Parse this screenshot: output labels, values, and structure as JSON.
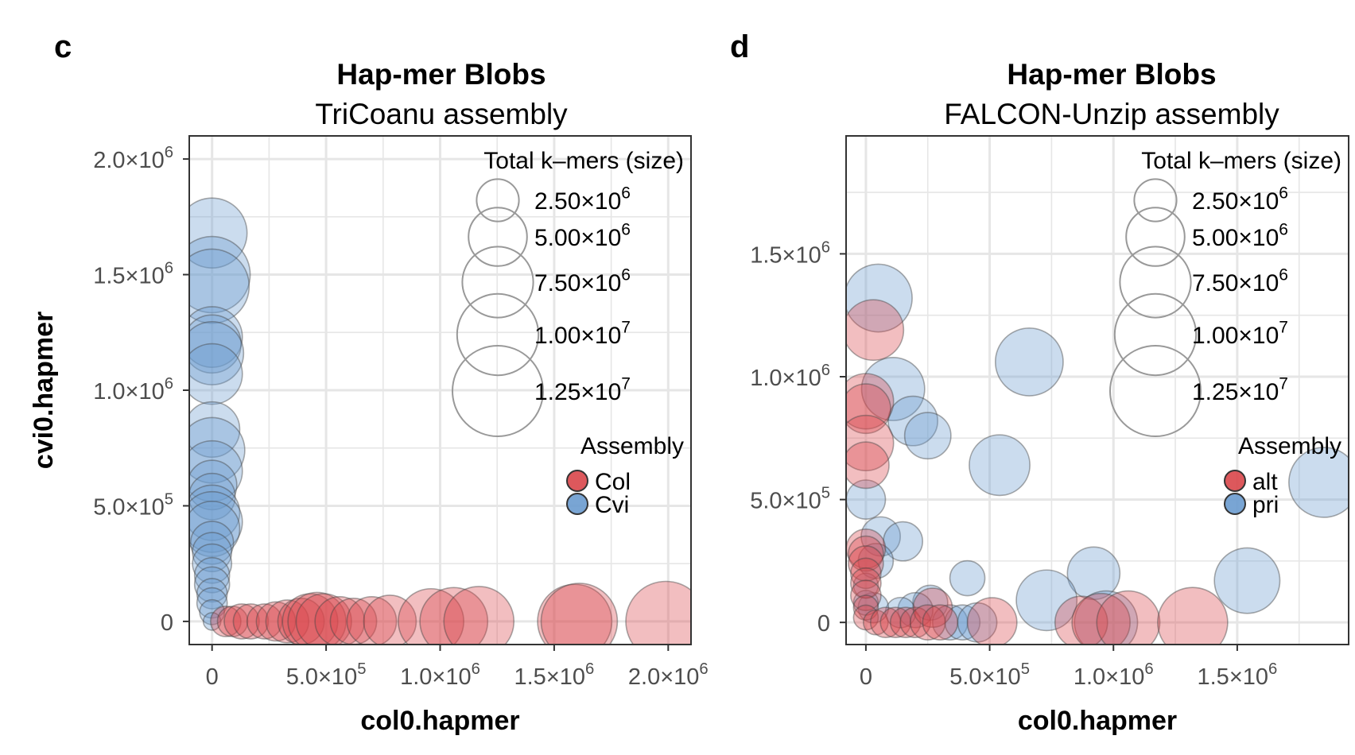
{
  "colors": {
    "red": "#d9464a",
    "blue": "#6a9bcf",
    "grid": "#e6e6e6",
    "panel_border": "#333333",
    "legend_circle": "#999999"
  },
  "panels": [
    {
      "letter": "c"
    },
    {
      "letter": "d"
    }
  ],
  "chart_data": [
    {
      "type": "scatter",
      "title": "Hap-mer Blobs",
      "subtitle": "TriCoanu assembly",
      "xlabel": "col0.hapmer",
      "ylabel": "cvi0.hapmer",
      "xlim": [
        -100000,
        2100000
      ],
      "ylim": [
        -100000,
        2100000
      ],
      "x_ticks": [
        {
          "value": 0,
          "mant": "0",
          "exp": ""
        },
        {
          "value": 500000,
          "mant": "5.0×10",
          "exp": "5"
        },
        {
          "value": 1000000,
          "mant": "1.0×10",
          "exp": "6"
        },
        {
          "value": 1500000,
          "mant": "1.5×10",
          "exp": "6"
        },
        {
          "value": 2000000,
          "mant": "2.0×10",
          "exp": "6"
        }
      ],
      "y_ticks": [
        {
          "value": 0,
          "mant": "0",
          "exp": ""
        },
        {
          "value": 500000,
          "mant": "5.0×10",
          "exp": "5"
        },
        {
          "value": 1000000,
          "mant": "1.0×10",
          "exp": "6"
        },
        {
          "value": 1500000,
          "mant": "1.5×10",
          "exp": "6"
        },
        {
          "value": 2000000,
          "mant": "2.0×10",
          "exp": "6"
        }
      ],
      "grid": true,
      "size_legend": {
        "title": "Total k–mers (size)",
        "position": "top-right",
        "entries": [
          {
            "value": 2500000,
            "mant": "2.50×10",
            "exp": "6"
          },
          {
            "value": 5000000,
            "mant": "5.00×10",
            "exp": "6"
          },
          {
            "value": 7500000,
            "mant": "7.50×10",
            "exp": "6"
          },
          {
            "value": 10000000,
            "mant": "1.00×10",
            "exp": "7"
          },
          {
            "value": 12500000,
            "mant": "1.25×10",
            "exp": "7"
          }
        ]
      },
      "color_legend": {
        "title": "Assembly",
        "position": "right",
        "entries": [
          {
            "label": "Col",
            "color": "#d9464a"
          },
          {
            "label": "Cvi",
            "color": "#6a9bcf"
          }
        ]
      },
      "series": [
        {
          "name": "Cvi",
          "color": "#6a9bcf",
          "points": [
            {
              "x": 0,
              "y": 1680000,
              "size": 8000000
            },
            {
              "x": 0,
              "y": 1500000,
              "size": 9500000
            },
            {
              "x": 0,
              "y": 1450000,
              "size": 9000000
            },
            {
              "x": 0,
              "y": 1230000,
              "size": 6000000
            },
            {
              "x": 0,
              "y": 1200000,
              "size": 5500000
            },
            {
              "x": 0,
              "y": 1160000,
              "size": 6500000
            },
            {
              "x": 0,
              "y": 1070000,
              "size": 6000000
            },
            {
              "x": 0,
              "y": 830000,
              "size": 5000000
            },
            {
              "x": 0,
              "y": 740000,
              "size": 7000000
            },
            {
              "x": 0,
              "y": 650000,
              "size": 6000000
            },
            {
              "x": 0,
              "y": 590000,
              "size": 4000000
            },
            {
              "x": 0,
              "y": 540000,
              "size": 3500000
            },
            {
              "x": 0,
              "y": 470000,
              "size": 5000000
            },
            {
              "x": 0,
              "y": 430000,
              "size": 6000000
            },
            {
              "x": 0,
              "y": 400000,
              "size": 5000000
            },
            {
              "x": 0,
              "y": 340000,
              "size": 3000000
            },
            {
              "x": 0,
              "y": 300000,
              "size": 2500000
            },
            {
              "x": 0,
              "y": 250000,
              "size": 2500000
            },
            {
              "x": 0,
              "y": 200000,
              "size": 2000000
            },
            {
              "x": 0,
              "y": 160000,
              "size": 2000000
            },
            {
              "x": 0,
              "y": 120000,
              "size": 1500000
            },
            {
              "x": 0,
              "y": 80000,
              "size": 1500000
            },
            {
              "x": 0,
              "y": 40000,
              "size": 1000000
            },
            {
              "x": 0,
              "y": 0,
              "size": 500000
            }
          ]
        },
        {
          "name": "Col",
          "color": "#d9464a",
          "points": [
            {
              "x": 60000,
              "y": 0,
              "size": 1500000
            },
            {
              "x": 90000,
              "y": 0,
              "size": 1500000
            },
            {
              "x": 130000,
              "y": 0,
              "size": 2000000
            },
            {
              "x": 170000,
              "y": 0,
              "size": 2000000
            },
            {
              "x": 230000,
              "y": 0,
              "size": 2000000
            },
            {
              "x": 280000,
              "y": 0,
              "size": 2500000
            },
            {
              "x": 330000,
              "y": 0,
              "size": 3000000
            },
            {
              "x": 390000,
              "y": 0,
              "size": 3500000
            },
            {
              "x": 430000,
              "y": 0,
              "size": 5000000
            },
            {
              "x": 460000,
              "y": 0,
              "size": 5500000
            },
            {
              "x": 490000,
              "y": 0,
              "size": 5000000
            },
            {
              "x": 560000,
              "y": 0,
              "size": 4000000
            },
            {
              "x": 620000,
              "y": 0,
              "size": 3500000
            },
            {
              "x": 700000,
              "y": 0,
              "size": 4000000
            },
            {
              "x": 780000,
              "y": 0,
              "size": 4500000
            },
            {
              "x": 960000,
              "y": 0,
              "size": 7000000
            },
            {
              "x": 1060000,
              "y": 0,
              "size": 7500000
            },
            {
              "x": 1170000,
              "y": 0,
              "size": 8000000
            },
            {
              "x": 1590000,
              "y": 0,
              "size": 9000000
            },
            {
              "x": 1610000,
              "y": 0,
              "size": 9500000
            },
            {
              "x": 1990000,
              "y": 0,
              "size": 10500000
            }
          ]
        }
      ]
    },
    {
      "type": "scatter",
      "title": "Hap-mer Blobs",
      "subtitle": "FALCON-Unzip assembly",
      "xlabel": "col0.hapmer",
      "ylabel": "",
      "xlim": [
        -80000,
        1950000
      ],
      "ylim": [
        -90000,
        1980000
      ],
      "x_ticks": [
        {
          "value": 0,
          "mant": "0",
          "exp": ""
        },
        {
          "value": 500000,
          "mant": "5.0×10",
          "exp": "5"
        },
        {
          "value": 1000000,
          "mant": "1.0×10",
          "exp": "6"
        },
        {
          "value": 1500000,
          "mant": "1.5×10",
          "exp": "6"
        }
      ],
      "y_ticks": [
        {
          "value": 0,
          "mant": "0",
          "exp": ""
        },
        {
          "value": 500000,
          "mant": "5.0×10",
          "exp": "5"
        },
        {
          "value": 1000000,
          "mant": "1.0×10",
          "exp": "6"
        },
        {
          "value": 1500000,
          "mant": "1.5×10",
          "exp": "6"
        }
      ],
      "grid": true,
      "size_legend": {
        "title": "Total k–mers (size)",
        "position": "top-right",
        "entries": [
          {
            "value": 2500000,
            "mant": "2.50×10",
            "exp": "6"
          },
          {
            "value": 5000000,
            "mant": "5.00×10",
            "exp": "6"
          },
          {
            "value": 7500000,
            "mant": "7.50×10",
            "exp": "6"
          },
          {
            "value": 10000000,
            "mant": "1.00×10",
            "exp": "7"
          },
          {
            "value": 12500000,
            "mant": "1.25×10",
            "exp": "7"
          }
        ]
      },
      "color_legend": {
        "title": "Assembly",
        "position": "right",
        "entries": [
          {
            "label": "alt",
            "color": "#d9464a"
          },
          {
            "label": "pri",
            "color": "#6a9bcf"
          }
        ]
      },
      "series": [
        {
          "name": "pri",
          "color": "#6a9bcf",
          "points": [
            {
              "x": 50000,
              "y": 1320000,
              "size": 7500000
            },
            {
              "x": 110000,
              "y": 950000,
              "size": 6500000
            },
            {
              "x": 190000,
              "y": 820000,
              "size": 4000000
            },
            {
              "x": 250000,
              "y": 760000,
              "size": 3500000
            },
            {
              "x": 540000,
              "y": 640000,
              "size": 6000000
            },
            {
              "x": 660000,
              "y": 1060000,
              "size": 7500000
            },
            {
              "x": 1850000,
              "y": 570000,
              "size": 8000000
            },
            {
              "x": 0,
              "y": 500000,
              "size": 2500000
            },
            {
              "x": 60000,
              "y": 350000,
              "size": 2500000
            },
            {
              "x": 150000,
              "y": 330000,
              "size": 2500000
            },
            {
              "x": 40000,
              "y": 250000,
              "size": 2000000
            },
            {
              "x": 410000,
              "y": 180000,
              "size": 2000000
            },
            {
              "x": 920000,
              "y": 200000,
              "size": 4500000
            },
            {
              "x": 1540000,
              "y": 170000,
              "size": 7000000
            },
            {
              "x": 730000,
              "y": 90000,
              "size": 6000000
            },
            {
              "x": 260000,
              "y": 80000,
              "size": 2000000
            },
            {
              "x": 200000,
              "y": 50000,
              "size": 2000000
            },
            {
              "x": 140000,
              "y": 40000,
              "size": 1500000
            },
            {
              "x": 30000,
              "y": 60000,
              "size": 1500000
            },
            {
              "x": 0,
              "y": 150000,
              "size": 1000000
            },
            {
              "x": 0,
              "y": 80000,
              "size": 1000000
            },
            {
              "x": 340000,
              "y": 0,
              "size": 2000000
            },
            {
              "x": 390000,
              "y": 0,
              "size": 2000000
            },
            {
              "x": 450000,
              "y": 0,
              "size": 2500000
            },
            {
              "x": 970000,
              "y": 0,
              "size": 6500000
            }
          ]
        },
        {
          "name": "alt",
          "color": "#d9464a",
          "points": [
            {
              "x": 30000,
              "y": 1190000,
              "size": 6000000
            },
            {
              "x": 0,
              "y": 900000,
              "size": 5000000
            },
            {
              "x": 0,
              "y": 870000,
              "size": 4000000
            },
            {
              "x": 0,
              "y": 730000,
              "size": 5000000
            },
            {
              "x": 0,
              "y": 640000,
              "size": 3500000
            },
            {
              "x": 0,
              "y": 300000,
              "size": 2500000
            },
            {
              "x": 0,
              "y": 280000,
              "size": 2000000
            },
            {
              "x": 0,
              "y": 240000,
              "size": 2000000
            },
            {
              "x": 0,
              "y": 200000,
              "size": 1500000
            },
            {
              "x": 0,
              "y": 160000,
              "size": 1500000
            },
            {
              "x": 0,
              "y": 110000,
              "size": 1500000
            },
            {
              "x": 0,
              "y": 60000,
              "size": 1000000
            },
            {
              "x": 0,
              "y": 20000,
              "size": 1000000
            },
            {
              "x": 40000,
              "y": 0,
              "size": 1000000
            },
            {
              "x": 80000,
              "y": 0,
              "size": 1500000
            },
            {
              "x": 120000,
              "y": 0,
              "size": 1500000
            },
            {
              "x": 160000,
              "y": 0,
              "size": 1500000
            },
            {
              "x": 200000,
              "y": 0,
              "size": 1500000
            },
            {
              "x": 270000,
              "y": 60000,
              "size": 2500000
            },
            {
              "x": 250000,
              "y": 0,
              "size": 2000000
            },
            {
              "x": 300000,
              "y": 0,
              "size": 2000000
            },
            {
              "x": 510000,
              "y": 0,
              "size": 4000000
            },
            {
              "x": 870000,
              "y": 0,
              "size": 4500000
            },
            {
              "x": 950000,
              "y": 0,
              "size": 5500000
            },
            {
              "x": 1060000,
              "y": 0,
              "size": 6500000
            },
            {
              "x": 1320000,
              "y": 0,
              "size": 8000000
            }
          ]
        }
      ]
    }
  ]
}
